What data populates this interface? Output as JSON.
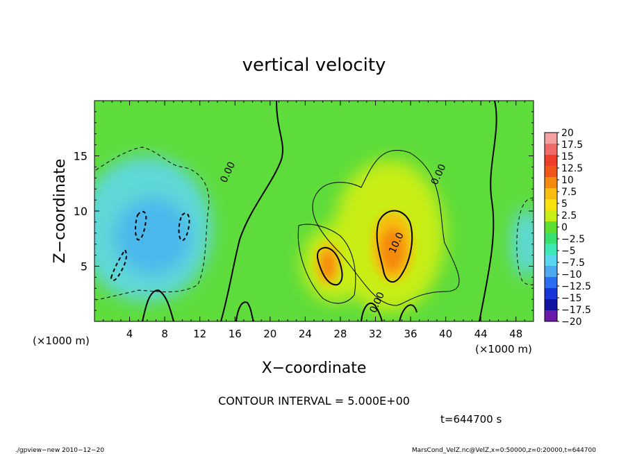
{
  "chart_data": {
    "type": "heatmap",
    "title": "vertical velocity",
    "xlabel": "X−coordinate",
    "ylabel": "Z−coordinate",
    "x_unit": "(×1000 m)",
    "xlim": [
      0,
      50
    ],
    "ylim": [
      0,
      20
    ],
    "x_ticks": [
      4,
      8,
      12,
      16,
      20,
      24,
      28,
      32,
      36,
      40,
      44,
      48
    ],
    "y_ticks": [
      5,
      10,
      15
    ],
    "colorbar_labels": [
      "20",
      "17.5",
      "15",
      "12.5",
      "10",
      "7.5",
      "5",
      "2.5",
      "0",
      "−2.5",
      "−5",
      "−7.5",
      "−10",
      "−12.5",
      "−15",
      "−17.5",
      "−20"
    ],
    "colorbar_colors": [
      "#f2a0a0",
      "#f06a6a",
      "#ef3d2a",
      "#f0561a",
      "#f58a10",
      "#f7bd10",
      "#f7e20c",
      "#c8ee18",
      "#5ede30",
      "#38e070",
      "#40e8b8",
      "#5ad6ee",
      "#4ea8f0",
      "#2c6ef2",
      "#1836d8",
      "#1212a0",
      "#6a1aa8"
    ],
    "contour_labels": [
      {
        "text": "0.00",
        "x": 15.5,
        "y": 13.4
      },
      {
        "text": "0.00",
        "x": 39.5,
        "y": 13.2
      },
      {
        "text": "10.0",
        "x": 34.7,
        "y": 7.0
      },
      {
        "text": "0.00",
        "x": 32.5,
        "y": 1.6
      }
    ],
    "contour_interval_text": "CONTOUR INTERVAL = 5.000E+00",
    "time_text": "t=644700 s",
    "footer_left": "./gpview−new   2010−12−20",
    "footer_right": "MarsCond_VelZ.nc@VelZ,x=0:50000,z=0:20000,t=644700"
  }
}
